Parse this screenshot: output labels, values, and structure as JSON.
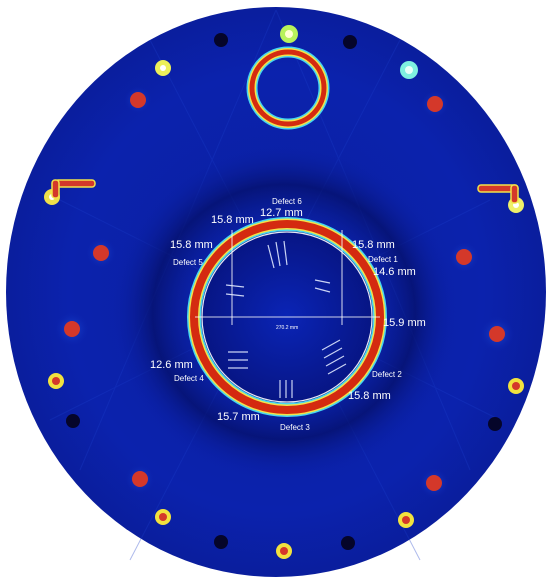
{
  "image": {
    "type": "tomographic-reconstruction",
    "colors": {
      "background": "#ffffff",
      "field": "#0b1fa6",
      "field_dark": "#061588",
      "ring": "#d42a10",
      "ring_edge": "#f2e24a",
      "ring_halo": "#46d6f0",
      "label": "#ffffff"
    }
  },
  "labels": {
    "defect_6": "Defect 6",
    "thickness_6": "12.7 mm",
    "thickness_top_left": "15.8 mm",
    "thickness_top_right": "15.8 mm",
    "thickness_left": "15.8 mm",
    "defect_5": "Defect 5",
    "defect_1": "Defect 1",
    "thickness_right_upper": "14.6 mm",
    "thickness_right": "15.9 mm",
    "diameter": "270.2 mm",
    "thickness_lower_left": "12.6 mm",
    "defect_4": "Defect 4",
    "defect_2": "Defect 2",
    "thickness_lower_right": "15.8 mm",
    "thickness_bottom": "15.7 mm",
    "defect_3": "Defect 3"
  }
}
